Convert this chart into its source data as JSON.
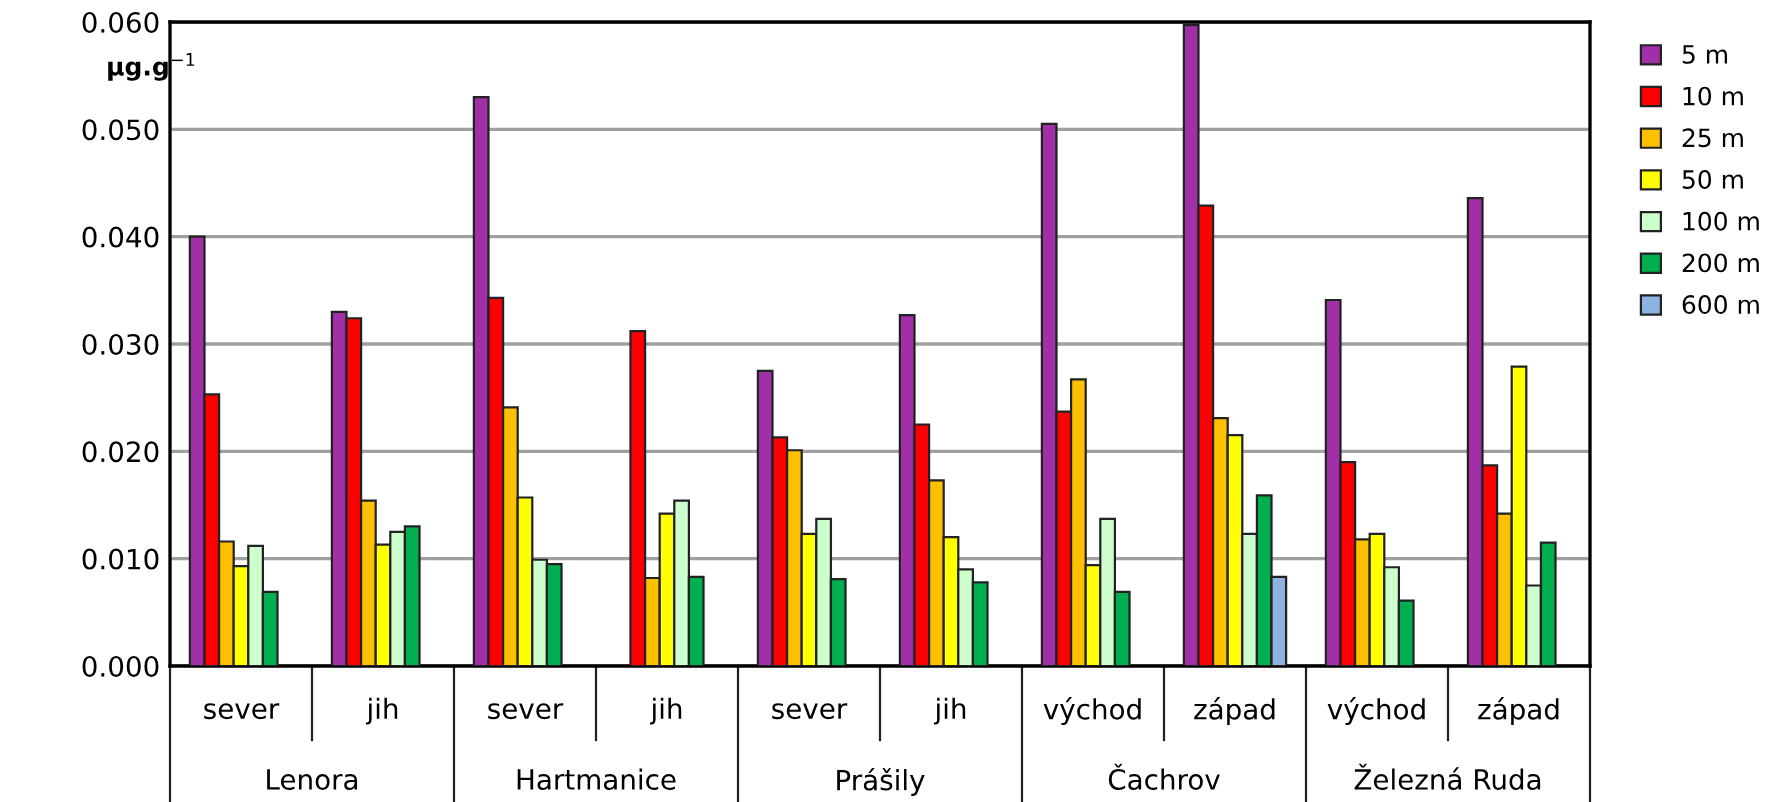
{
  "chart_data": {
    "type": "bar",
    "ylabel": "µg.g$^{−1}$",
    "categories": [
      "sever",
      "jih",
      "sever",
      "jih",
      "sever",
      "jih",
      "východ",
      "západ",
      "východ",
      "západ"
    ],
    "annotations": [
      "Lenora",
      "Hartmanice",
      "Prášily",
      "Čachrov",
      "Železná Ruda"
    ],
    "series": [
      {
        "name": "5 m",
        "color": "#a02fa8",
        "values": [
          0.04,
          0.033,
          0.053,
          null,
          0.0275,
          0.0327,
          0.0505,
          0.0597,
          0.0341,
          0.0436
        ]
      },
      {
        "name": "10 m",
        "color": "#ff0000",
        "values": [
          0.0253,
          0.0324,
          0.0343,
          0.0312,
          0.0213,
          0.0225,
          0.0237,
          0.0429,
          0.019,
          0.0187
        ]
      },
      {
        "name": "25 m",
        "color": "#ffc000",
        "values": [
          0.0116,
          0.0154,
          0.0241,
          0.0082,
          0.0201,
          0.0173,
          0.0267,
          0.0231,
          0.0118,
          0.0142
        ]
      },
      {
        "name": "50 m",
        "color": "#ffff00",
        "values": [
          0.0093,
          0.0113,
          0.0157,
          0.0142,
          0.0123,
          0.012,
          0.0094,
          0.0215,
          0.0123,
          0.0279
        ]
      },
      {
        "name": "100 m",
        "color": "#ccffcc",
        "values": [
          0.0112,
          0.0125,
          0.0099,
          0.0154,
          0.0137,
          0.009,
          0.0137,
          0.0123,
          0.0092,
          0.0075
        ]
      },
      {
        "name": "200 m",
        "color": "#00b050",
        "values": [
          0.0069,
          0.013,
          0.0095,
          0.0083,
          0.0081,
          0.0078,
          0.0069,
          0.0159,
          0.0061,
          0.0115
        ]
      },
      {
        "name": "600 m",
        "color": "#8db3e2",
        "values": [
          null,
          null,
          null,
          null,
          null,
          null,
          null,
          0.0083,
          null,
          null
        ]
      }
    ],
    "ylim": [
      0,
      0.06
    ],
    "yticks": [
      {
        "value": 0,
        "label": "0.000"
      },
      {
        "value": 0.01,
        "label": "0.010"
      },
      {
        "value": 0.02,
        "label": "0.020"
      },
      {
        "value": 0.03,
        "label": "0.030"
      },
      {
        "value": 0.04,
        "label": "0.040"
      },
      {
        "value": 0.05,
        "label": "0.050"
      },
      {
        "value": 0.06,
        "label": "0.060"
      }
    ],
    "grid": "y",
    "legend": "right"
  }
}
